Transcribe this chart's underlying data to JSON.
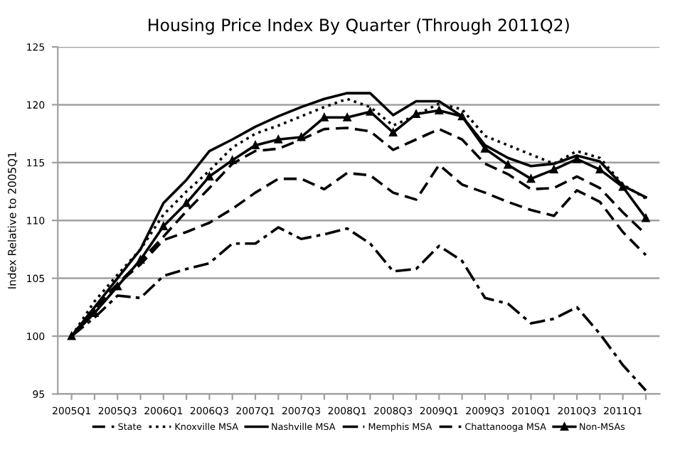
{
  "chart_data": {
    "type": "line",
    "title": "Housing Price Index By Quarter (Through 2011Q2)",
    "ylabel": "Index Relative to 2005Q1",
    "categories": [
      "2005Q1",
      null,
      "2005Q3",
      null,
      "2006Q1",
      null,
      "2006Q3",
      null,
      "2007Q1",
      null,
      "2007Q3",
      null,
      "2008Q1",
      null,
      "2008Q3",
      null,
      "2009Q1",
      null,
      "2009Q3",
      null,
      "2010Q1",
      null,
      "2010Q3",
      null,
      "2011Q1",
      null
    ],
    "ylim": [
      95,
      125
    ],
    "yticks": [
      95,
      100,
      105,
      110,
      115,
      120,
      125
    ],
    "grid": "y",
    "legend": "bottom",
    "marker": "none",
    "series": [
      {
        "name": "State",
        "color": "#000000",
        "line_style": "dashed",
        "values": [
          100,
          102.3,
          104.5,
          106.5,
          108.6,
          110.8,
          112.8,
          114.9,
          116.0,
          116.2,
          117.0,
          117.9,
          118.0,
          117.7,
          116.1,
          117.0,
          117.9,
          117.0,
          114.9,
          114.0,
          112.7,
          112.8,
          113.8,
          112.8,
          110.7,
          108.8
        ]
      },
      {
        "name": "Knoxville MSA",
        "color": "#000000",
        "line_style": "dotted",
        "values": [
          100,
          103.0,
          105.3,
          107.5,
          110.5,
          112.5,
          114.3,
          116.3,
          117.5,
          118.2,
          119.0,
          119.8,
          120.5,
          119.8,
          118.2,
          119.1,
          120.1,
          119.6,
          117.3,
          116.5,
          115.7,
          114.9,
          116.0,
          115.4,
          113.1,
          111.9
        ]
      },
      {
        "name": "Nashville MSA",
        "color": "#000000",
        "line_style": "solid",
        "values": [
          100,
          102.5,
          105.0,
          107.5,
          111.5,
          113.5,
          116.0,
          117.0,
          118.1,
          119.0,
          119.8,
          120.5,
          121.0,
          121.0,
          119.1,
          120.3,
          120.3,
          119.0,
          116.5,
          115.4,
          114.7,
          114.9,
          115.6,
          115.1,
          113.0,
          112.0
        ]
      },
      {
        "name": "Memphis MSA",
        "color": "#000000",
        "line_style": "dashdot",
        "values": [
          100,
          101.6,
          103.5,
          103.3,
          105.2,
          105.8,
          106.3,
          108.0,
          108.0,
          109.4,
          108.4,
          108.8,
          109.3,
          108.0,
          105.6,
          105.8,
          107.8,
          106.5,
          103.3,
          102.8,
          101.1,
          101.5,
          102.5,
          100.2,
          97.5,
          95.3
        ]
      },
      {
        "name": "Chattanooga MSA",
        "color": "#000000",
        "line_style": "dashed",
        "values": [
          100,
          102.5,
          104.5,
          106.2,
          108.3,
          109.0,
          109.8,
          111.0,
          112.4,
          113.6,
          113.6,
          112.7,
          114.1,
          113.9,
          112.4,
          111.8,
          114.8,
          113.1,
          112.4,
          111.6,
          110.9,
          110.4,
          112.6,
          111.6,
          109.0,
          107.0
        ]
      },
      {
        "name": "Non-MSAs",
        "color": "#000000",
        "line_style": "solid",
        "marker": "triangle",
        "values": [
          100,
          102.0,
          104.3,
          106.6,
          109.5,
          111.5,
          113.8,
          115.2,
          116.5,
          117.0,
          117.2,
          118.9,
          118.9,
          119.4,
          117.6,
          119.2,
          119.5,
          119.0,
          116.2,
          114.8,
          113.6,
          114.4,
          115.3,
          114.4,
          112.9,
          110.2
        ]
      }
    ]
  }
}
